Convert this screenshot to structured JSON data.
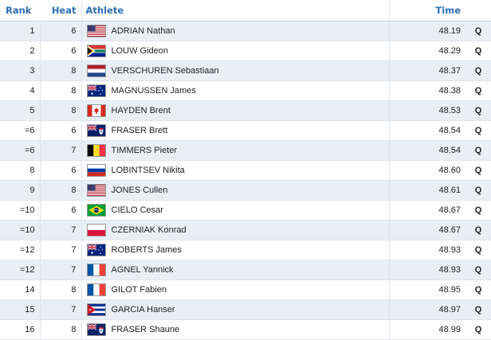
{
  "headers": {
    "rank": "Rank",
    "heat": "Heat",
    "athlete": "Athlete",
    "time": "Time"
  },
  "rows": [
    {
      "rank": "1",
      "heat": "6",
      "flag": "usa-flag-icon",
      "athlete": "ADRIAN Nathan",
      "time": "48.19",
      "q": "Q"
    },
    {
      "rank": "2",
      "heat": "6",
      "flag": "south-africa-flag-icon",
      "athlete": "LOUW Gideon",
      "time": "48.29",
      "q": "Q"
    },
    {
      "rank": "3",
      "heat": "8",
      "flag": "netherlands-flag-icon",
      "athlete": "VERSCHUREN Sebastiaan",
      "time": "48.37",
      "q": "Q"
    },
    {
      "rank": "4",
      "heat": "8",
      "flag": "australia-flag-icon",
      "athlete": "MAGNUSSEN James",
      "time": "48.38",
      "q": "Q"
    },
    {
      "rank": "5",
      "heat": "8",
      "flag": "canada-flag-icon",
      "athlete": "HAYDEN Brent",
      "time": "48.53",
      "q": "Q"
    },
    {
      "rank": "=6",
      "heat": "6",
      "flag": "cayman-islands-flag-icon",
      "athlete": "FRASER Brett",
      "time": "48.54",
      "q": "Q"
    },
    {
      "rank": "=6",
      "heat": "7",
      "flag": "belgium-flag-icon",
      "athlete": "TIMMERS Pieter",
      "time": "48.54",
      "q": "Q"
    },
    {
      "rank": "8",
      "heat": "6",
      "flag": "russia-flag-icon",
      "athlete": "LOBINTSEV Nikita",
      "time": "48.60",
      "q": "Q"
    },
    {
      "rank": "9",
      "heat": "8",
      "flag": "usa-flag-icon",
      "athlete": "JONES Cullen",
      "time": "48.61",
      "q": "Q"
    },
    {
      "rank": "=10",
      "heat": "6",
      "flag": "brazil-flag-icon",
      "athlete": "CIELO Cesar",
      "time": "48.67",
      "q": "Q"
    },
    {
      "rank": "=10",
      "heat": "7",
      "flag": "poland-flag-icon",
      "athlete": "CZERNIAK Konrad",
      "time": "48.67",
      "q": "Q"
    },
    {
      "rank": "=12",
      "heat": "7",
      "flag": "australia-flag-icon",
      "athlete": "ROBERTS James",
      "time": "48.93",
      "q": "Q"
    },
    {
      "rank": "=12",
      "heat": "7",
      "flag": "france-flag-icon",
      "athlete": "AGNEL Yannick",
      "time": "48.93",
      "q": "Q"
    },
    {
      "rank": "14",
      "heat": "8",
      "flag": "france-flag-icon",
      "athlete": "GILOT Fabien",
      "time": "48.95",
      "q": "Q"
    },
    {
      "rank": "15",
      "heat": "7",
      "flag": "cuba-flag-icon",
      "athlete": "GARCIA Hanser",
      "time": "48.97",
      "q": "Q"
    },
    {
      "rank": "16",
      "heat": "8",
      "flag": "cayman-islands-flag-icon",
      "athlete": "FRASER Shaune",
      "time": "48.99",
      "q": "Q"
    }
  ]
}
